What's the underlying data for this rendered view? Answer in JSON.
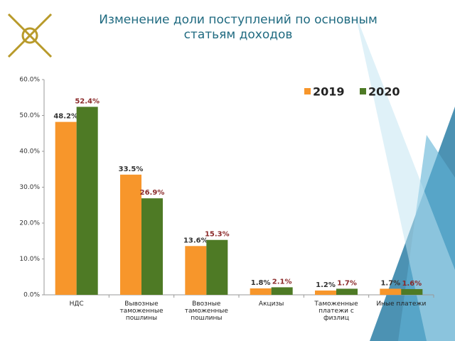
{
  "chart_data": {
    "type": "bar",
    "title": "Изменение доли поступлений по основным статьям доходов",
    "categories": [
      "НДС",
      "Вывозные таможенные пошлины",
      "Ввозные таможенные пошлины",
      "Акцизы",
      "Таможенные платежи с физлиц",
      "Иные платежи"
    ],
    "series": [
      {
        "name": "2019",
        "color": "#f7962b",
        "values": [
          48.2,
          33.5,
          13.6,
          1.8,
          1.2,
          1.7
        ],
        "value_labels": [
          "48.2%",
          "33.5%",
          "13.6%",
          "1.8%",
          "1.2%",
          "1.7%"
        ]
      },
      {
        "name": "2020",
        "color": "#4e7a25",
        "values": [
          52.4,
          26.9,
          15.3,
          2.1,
          1.7,
          1.6
        ],
        "value_labels": [
          "52.4%",
          "26.9%",
          "15.3%",
          "2.1%",
          "1.7%",
          "1.6%"
        ]
      }
    ],
    "ylim": [
      0,
      60
    ],
    "yticks": [
      {
        "value": 0,
        "label": "0.0%"
      },
      {
        "value": 10,
        "label": "10.0%"
      },
      {
        "value": 20,
        "label": "20.0%"
      },
      {
        "value": 30,
        "label": "30.0%"
      },
      {
        "value": 40,
        "label": "40.0%"
      },
      {
        "value": 50,
        "label": "50.0%"
      },
      {
        "value": 60,
        "label": "60.0%"
      }
    ],
    "legend": "top-right"
  }
}
